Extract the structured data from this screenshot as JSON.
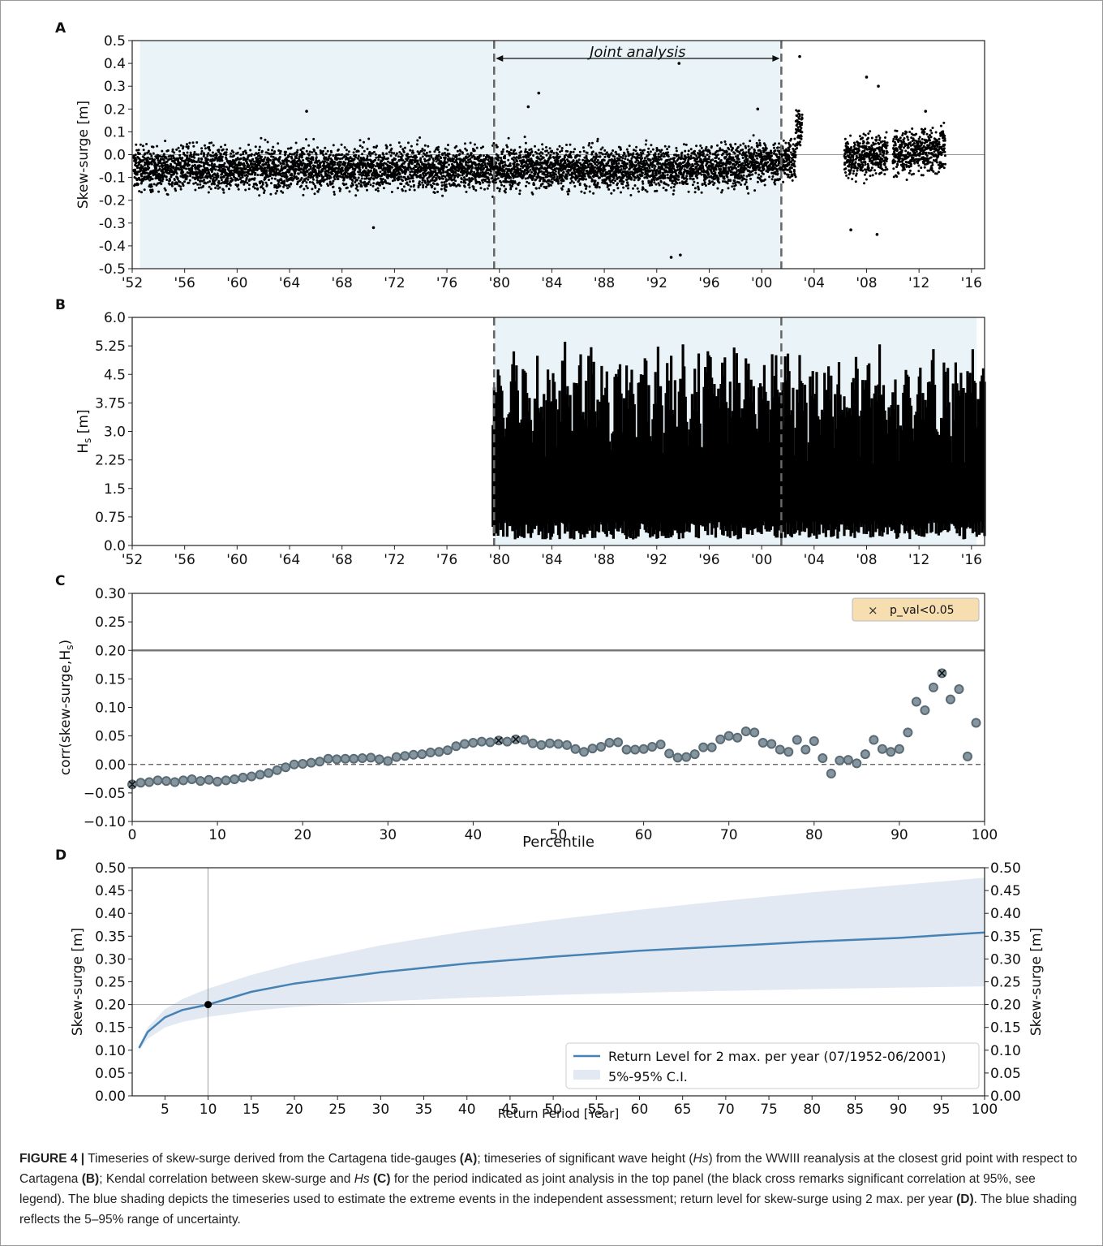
{
  "figure": {
    "caption_label": "FIGURE 4 |",
    "caption_parts": [
      " Timeseries of skew-surge derived from the Cartagena tide-gauges ",
      "(A)",
      "; timeseries of significant wave height (",
      "Hs",
      ") from the WWIII reanalysis at the closest grid point with respect to Cartagena ",
      "(B)",
      "; Kendal correlation between skew-surge and ",
      "Hs",
      " ",
      "(C)",
      " for the period indicated as joint analysis in the top panel (the black cross remarks significant correlation at 95%, see legend). The blue shading depicts the timeseries used to estimate the extreme events in the independent assessment; return level for skew-surge using 2 max. per year ",
      "(D)",
      ". The blue shading reflects the 5–95% range of uncertainty."
    ]
  },
  "colors": {
    "shade_blue": "#eaf4f8",
    "ci_blue": "#e3e9f3",
    "line_blue": "#4682b4",
    "marker_fill": "#8596a1",
    "marker_edge": "#5a6b74",
    "legend_c_bg": "#f6deb0"
  },
  "chart_data": [
    {
      "panel": "A",
      "type": "scatter",
      "ylabel": "Skew-surge [m]",
      "ylim": [
        -0.5,
        0.5
      ],
      "yticks": [
        "-0.5",
        "-0.4",
        "-0.3",
        "-0.2",
        "-0.1",
        "0.0",
        "0.1",
        "0.2",
        "0.3",
        "0.4",
        "0.5"
      ],
      "xlim": [
        1952,
        2017
      ],
      "xticks": [
        "'52",
        "'56",
        "'60",
        "'64",
        "'68",
        "'72",
        "'76",
        "'80",
        "'84",
        "'88",
        "'92",
        "'96",
        "'00",
        "'04",
        "'08",
        "'12",
        "'16"
      ],
      "annotation": "Joint analysis",
      "joint_period": [
        1979.6,
        2001.5
      ],
      "shaded_period": [
        1952.6,
        2001.5
      ],
      "data_segments": [
        [
          1952.1,
          2003.1
        ],
        [
          2006.3,
          2009.6
        ],
        [
          2010.0,
          2014.0
        ]
      ],
      "extremes": [
        {
          "x": 1983.0,
          "y": 0.27
        },
        {
          "x": 1982.2,
          "y": 0.21
        },
        {
          "x": 1993.7,
          "y": 0.4
        },
        {
          "x": 1993.1,
          "y": -0.45
        },
        {
          "x": 1993.8,
          "y": -0.44
        },
        {
          "x": 1999.7,
          "y": 0.2
        },
        {
          "x": 1965.3,
          "y": 0.19
        },
        {
          "x": 1970.4,
          "y": -0.32
        },
        {
          "x": 2002.9,
          "y": 0.43
        },
        {
          "x": 2008.0,
          "y": 0.34
        },
        {
          "x": 2008.9,
          "y": 0.3
        },
        {
          "x": 2008.8,
          "y": -0.35
        },
        {
          "x": 2006.8,
          "y": -0.33
        },
        {
          "x": 2012.5,
          "y": 0.19
        }
      ]
    },
    {
      "panel": "B",
      "type": "scatter",
      "ylabel": "H",
      "ylabel_sub": "s",
      "ylabel_unit": " [m]",
      "ylim": [
        0.0,
        6.0
      ],
      "yticks": [
        "0.0",
        "0.75",
        "1.5",
        "2.25",
        "3.0",
        "3.75",
        "4.5",
        "5.25",
        "6.0"
      ],
      "xlim": [
        1952,
        2017
      ],
      "xticks": [
        "'52",
        "'56",
        "'60",
        "'64",
        "'68",
        "'72",
        "'76",
        "'80",
        "'84",
        "'88",
        "'92",
        "'96",
        "'00",
        "'04",
        "'08",
        "'12",
        "'16"
      ],
      "joint_period": [
        1979.6,
        2001.5
      ],
      "shaded_period": [
        1979.6,
        2016.4
      ],
      "data_range": [
        1979.5,
        2017.0
      ]
    },
    {
      "panel": "C",
      "type": "scatter",
      "ylabel": "corr(skew-surge,H",
      "ylabel_sub": "s",
      "ylabel_end": ")",
      "xlabel": "Percentile",
      "xlim": [
        0,
        100
      ],
      "ylim": [
        -0.1,
        0.3
      ],
      "xticks": [
        "0",
        "10",
        "20",
        "30",
        "40",
        "50",
        "60",
        "70",
        "80",
        "90",
        "100"
      ],
      "yticks": [
        "−0.10",
        "−0.05",
        "0.00",
        "0.05",
        "0.10",
        "0.15",
        "0.20",
        "0.25",
        "0.30"
      ],
      "threshold": 0.2,
      "legend": "p_val<0.05",
      "legend_marker": "×",
      "x": [
        0,
        1,
        2,
        3,
        4,
        5,
        6,
        7,
        8,
        9,
        10,
        11,
        12,
        13,
        14,
        15,
        16,
        17,
        18,
        19,
        20,
        21,
        22,
        23,
        24,
        25,
        26,
        27,
        28,
        29,
        30,
        31,
        32,
        33,
        34,
        35,
        36,
        37,
        38,
        39,
        40,
        41,
        42,
        43,
        44,
        45,
        46,
        47,
        48,
        49,
        50,
        51,
        52,
        53,
        54,
        55,
        56,
        57,
        58,
        59,
        60,
        61,
        62,
        63,
        64,
        65,
        66,
        67,
        68,
        69,
        70,
        71,
        72,
        73,
        74,
        75,
        76,
        77,
        78,
        79,
        80,
        81,
        82,
        83,
        84,
        85,
        86,
        87,
        88,
        89,
        90,
        91,
        92,
        93,
        94,
        95,
        96,
        97,
        98,
        99
      ],
      "values": [
        -0.035,
        -0.032,
        -0.031,
        -0.028,
        -0.029,
        -0.031,
        -0.028,
        -0.026,
        -0.029,
        -0.027,
        -0.03,
        -0.028,
        -0.026,
        -0.023,
        -0.021,
        -0.018,
        -0.015,
        -0.01,
        -0.005,
        0.0,
        0.001,
        0.003,
        0.005,
        0.01,
        0.009,
        0.01,
        0.01,
        0.011,
        0.012,
        0.009,
        0.006,
        0.013,
        0.015,
        0.017,
        0.018,
        0.021,
        0.022,
        0.025,
        0.032,
        0.036,
        0.038,
        0.04,
        0.039,
        0.042,
        0.04,
        0.044,
        0.043,
        0.037,
        0.034,
        0.037,
        0.036,
        0.034,
        0.027,
        0.022,
        0.028,
        0.031,
        0.038,
        0.039,
        0.026,
        0.026,
        0.027,
        0.031,
        0.035,
        0.019,
        0.012,
        0.013,
        0.018,
        0.03,
        0.03,
        0.044,
        0.05,
        0.047,
        0.058,
        0.056,
        0.038,
        0.036,
        0.026,
        0.022,
        0.043,
        0.026,
        0.041,
        0.011,
        -0.016,
        0.007,
        0.008,
        0.002,
        0.018,
        0.043,
        0.027,
        0.022,
        0.027,
        0.056,
        0.11,
        0.095,
        0.135,
        0.16,
        0.114,
        0.132,
        0.014,
        0.073
      ],
      "significant_x": [
        0,
        43,
        45,
        95
      ]
    },
    {
      "panel": "D",
      "type": "line",
      "xlabel": "Return Period [Year]",
      "ylabel": "Skew-surge [m]",
      "ylabel_right": "Skew-surge [m]",
      "xlim": [
        1,
        100
      ],
      "ylim": [
        0.0,
        0.5
      ],
      "xticks": [
        "5",
        "10",
        "15",
        "20",
        "25",
        "30",
        "35",
        "40",
        "45",
        "50",
        "55",
        "60",
        "65",
        "70",
        "75",
        "80",
        "85",
        "90",
        "95",
        "100"
      ],
      "yticks": [
        "0.00",
        "0.05",
        "0.10",
        "0.15",
        "0.20",
        "0.25",
        "0.30",
        "0.35",
        "0.40",
        "0.45",
        "0.50"
      ],
      "series": [
        {
          "name": "Return Level for 2 max. per year (07/1952-06/2001)",
          "x": [
            2,
            3,
            5,
            7,
            10,
            15,
            20,
            30,
            40,
            50,
            60,
            70,
            80,
            90,
            100
          ],
          "y": [
            0.105,
            0.14,
            0.172,
            0.188,
            0.2,
            0.228,
            0.246,
            0.271,
            0.29,
            0.305,
            0.318,
            0.328,
            0.338,
            0.346,
            0.358
          ]
        },
        {
          "name": "5%-95% C.I.",
          "x": [
            2,
            3,
            5,
            7,
            10,
            15,
            20,
            30,
            40,
            50,
            60,
            70,
            80,
            90,
            100
          ],
          "lower": [
            0.1,
            0.125,
            0.15,
            0.162,
            0.173,
            0.186,
            0.195,
            0.207,
            0.215,
            0.221,
            0.226,
            0.23,
            0.234,
            0.237,
            0.24
          ],
          "upper": [
            0.11,
            0.15,
            0.19,
            0.212,
            0.235,
            0.265,
            0.29,
            0.33,
            0.361,
            0.386,
            0.408,
            0.428,
            0.446,
            0.462,
            0.478
          ]
        }
      ],
      "marked_point": {
        "x": 10,
        "y": 0.2
      },
      "reference_lines": {
        "x": 10,
        "y": 0.2
      }
    }
  ]
}
